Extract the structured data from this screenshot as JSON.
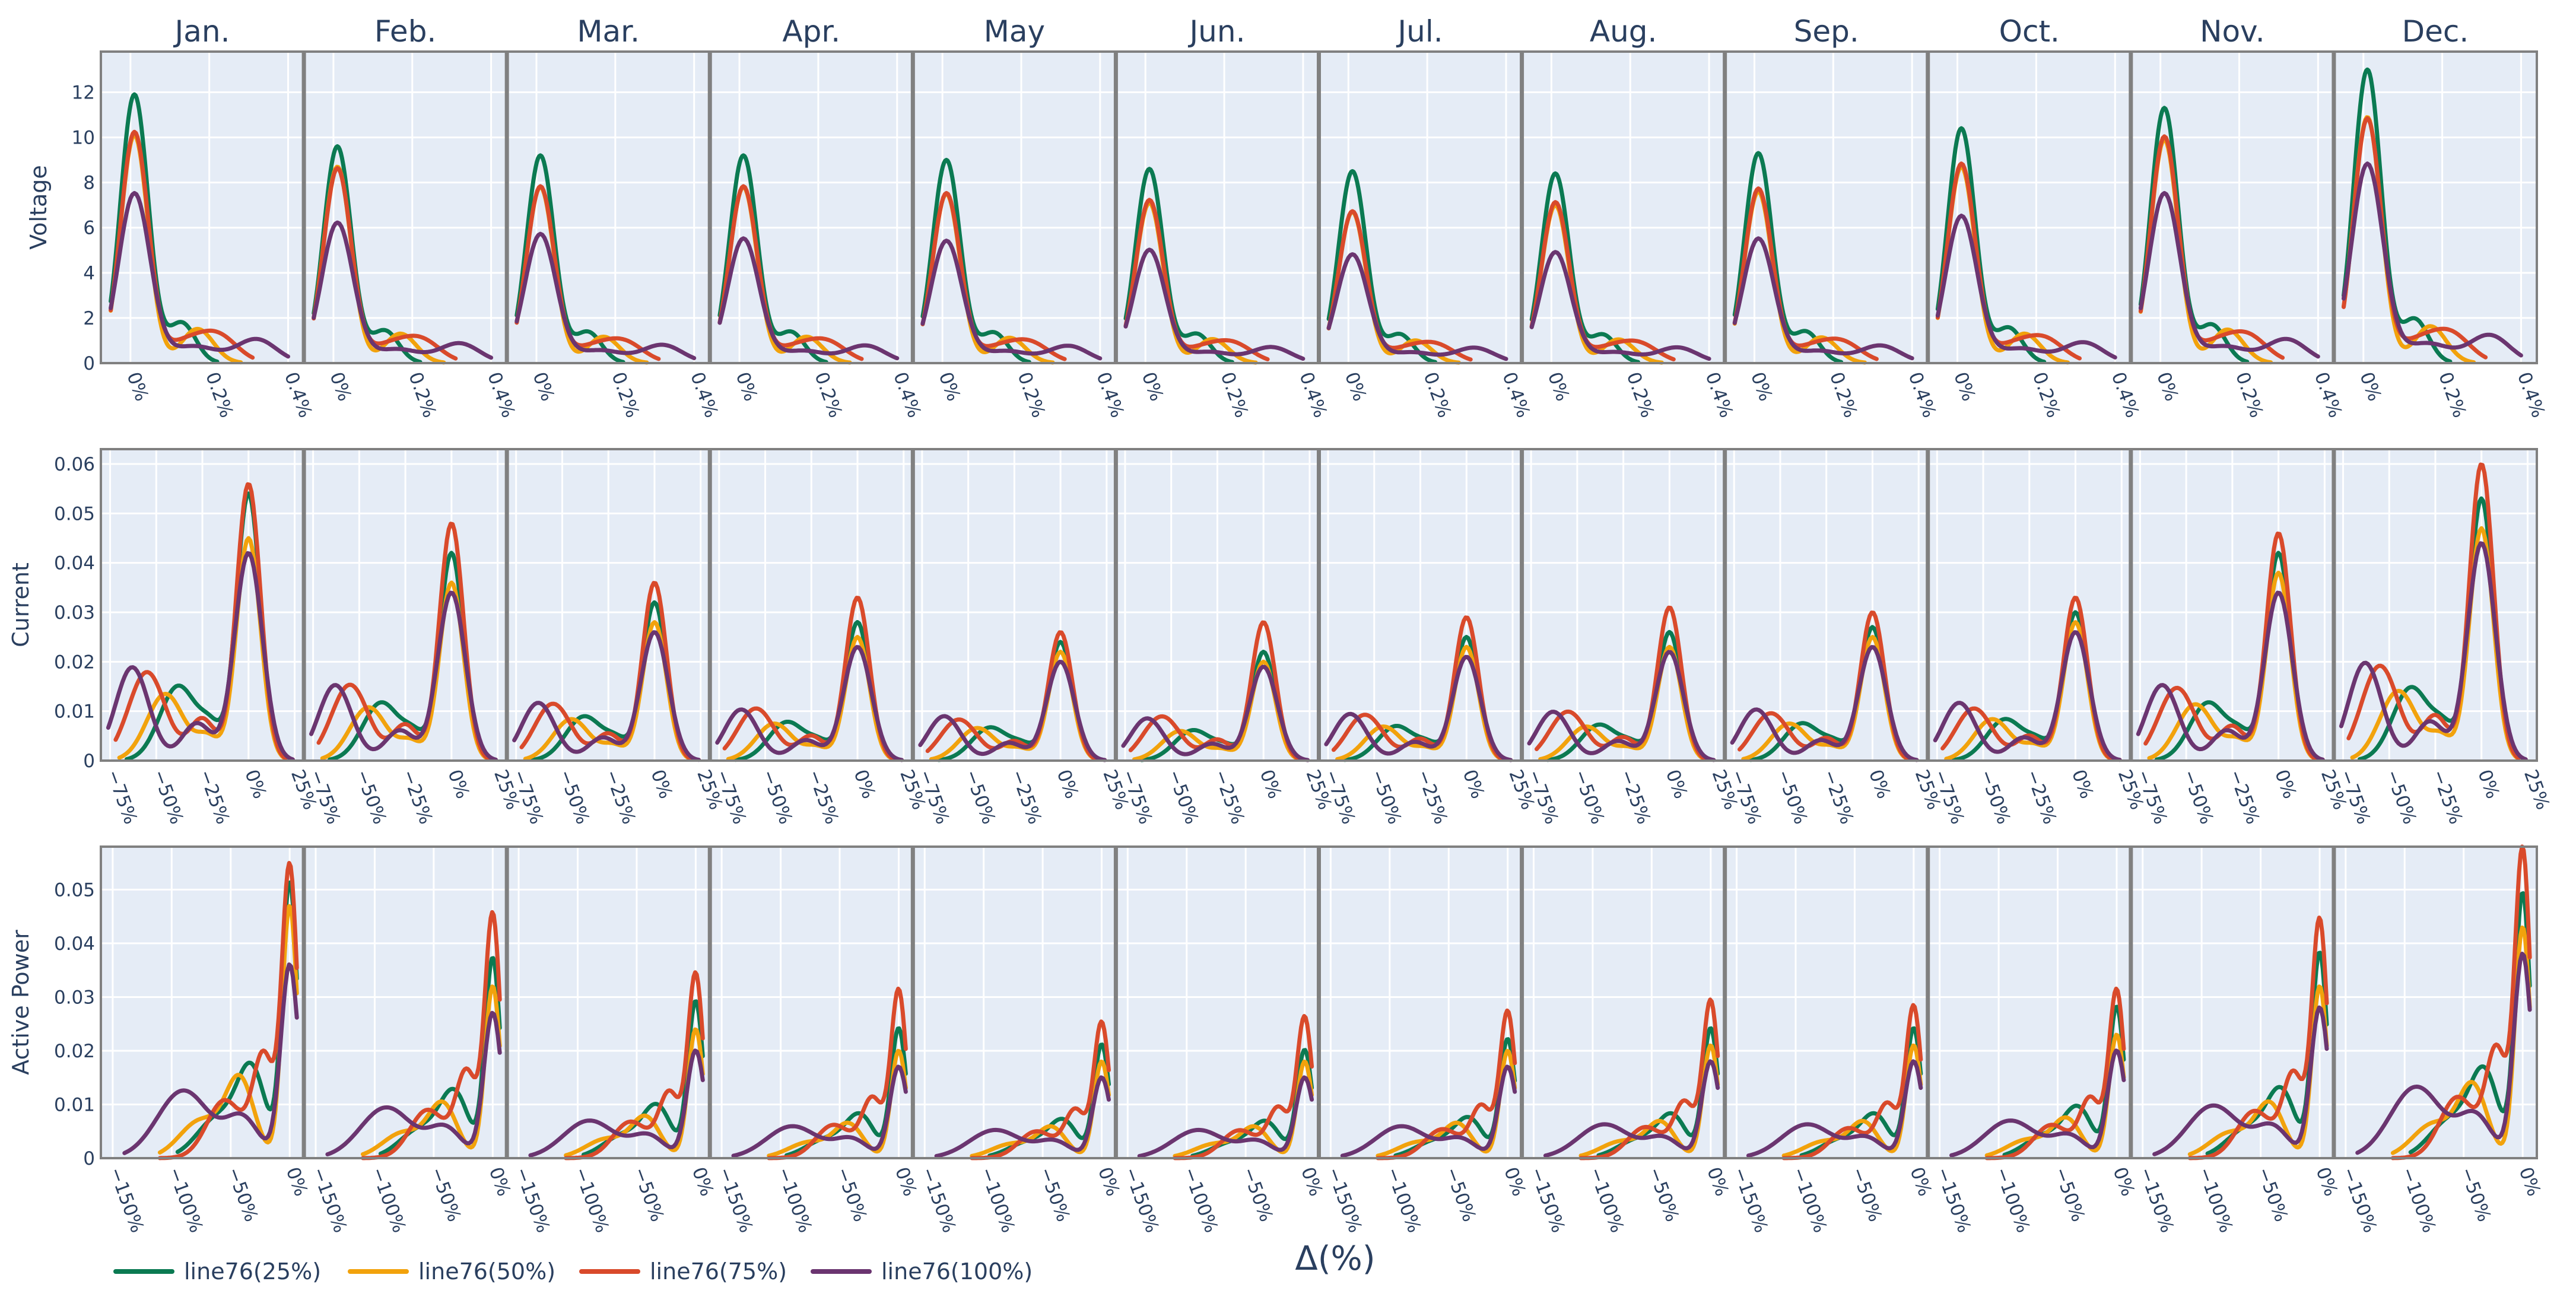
{
  "chart_data": {
    "type": "line",
    "kind": "kernel density estimate small multiples",
    "columns": [
      "Jan.",
      "Feb.",
      "Mar.",
      "Apr.",
      "May",
      "Jun.",
      "Jul.",
      "Aug.",
      "Sep.",
      "Oct.",
      "Nov.",
      "Dec."
    ],
    "xlabel": "Δ(%)",
    "legend": {
      "placement": "bottom-left",
      "entries": [
        {
          "name": "line76(25%)",
          "color": "#0b7a52"
        },
        {
          "name": "line76(50%)",
          "color": "#f2a20c"
        },
        {
          "name": "line76(75%)",
          "color": "#d94a2b"
        },
        {
          "name": "line76(100%)",
          "color": "#6b3570"
        }
      ]
    },
    "colors": {
      "plot_bg": "#e5ecf6",
      "grid": "#ffffff",
      "divider": "#808080",
      "text": "#2a3f5f"
    },
    "rows": [
      {
        "ylabel": "Voltage",
        "ylim": [
          0,
          13.8
        ],
        "yticks": [
          0,
          2,
          4,
          6,
          8,
          10,
          12
        ],
        "ytick_labels": [
          "0",
          "2",
          "4",
          "6",
          "8",
          "10",
          "12"
        ],
        "xlim": [
          -0.075,
          0.44
        ],
        "xticks": [
          0,
          0.2,
          0.4
        ],
        "xtick_labels": [
          "0%",
          "0.2%",
          "0.4%"
        ],
        "series_shape": [
          {
            "peaks": [
              [
                0.01,
                0.035,
                1.0
              ],
              [
                0.13,
                0.035,
                0.15
              ]
            ],
            "start": -0.05,
            "end": 0.22
          },
          {
            "peaks": [
              [
                0.01,
                0.035,
                1.0
              ],
              [
                0.17,
                0.04,
                0.15
              ]
            ],
            "start": -0.05,
            "end": 0.28
          },
          {
            "peaks": [
              [
                0.01,
                0.035,
                1.0
              ],
              [
                0.22,
                0.05,
                0.12
              ],
              [
                0.13,
                0.05,
                0.08
              ]
            ],
            "start": -0.05,
            "end": 0.31
          },
          {
            "peaks": [
              [
                0.01,
                0.04,
                1.0
              ],
              [
                0.32,
                0.05,
                0.14
              ],
              [
                0.16,
                0.06,
                0.1
              ]
            ],
            "start": -0.05,
            "end": 0.4
          }
        ],
        "peak_height": [
          [
            11.9,
            9.6,
            9.2,
            9.2,
            9.0,
            8.6,
            8.5,
            8.4,
            9.3,
            10.4,
            11.3,
            13.0
          ],
          [
            10.1,
            8.7,
            7.8,
            7.8,
            7.5,
            7.1,
            6.7,
            7.0,
            7.6,
            8.7,
            9.9,
            10.9
          ],
          [
            10.2,
            8.6,
            7.8,
            7.8,
            7.5,
            7.2,
            6.7,
            7.1,
            7.7,
            8.8,
            10.0,
            10.8
          ],
          [
            7.5,
            6.2,
            5.7,
            5.5,
            5.4,
            5.0,
            4.8,
            4.9,
            5.5,
            6.5,
            7.5,
            8.8
          ]
        ]
      },
      {
        "ylabel": "Current",
        "ylim": [
          0,
          0.063
        ],
        "yticks": [
          0,
          0.01,
          0.02,
          0.03,
          0.04,
          0.05,
          0.06
        ],
        "ytick_labels": [
          "0",
          "0.01",
          "0.02",
          "0.03",
          "0.04",
          "0.05",
          "0.06"
        ],
        "xlim": [
          -80,
          30
        ],
        "xticks": [
          -75,
          -50,
          -25,
          0,
          25
        ],
        "xtick_labels": [
          "−75%",
          "−50%",
          "−25%",
          "0%",
          "25%"
        ],
        "series_shape": [
          {
            "peaks": [
              [
                0,
                6.5,
                1.0
              ],
              [
                -38,
                10,
                0.28
              ],
              [
                -20,
                6,
                0.1
              ]
            ],
            "start": -66,
            "end": 20
          },
          {
            "peaks": [
              [
                0,
                6.5,
                1.0
              ],
              [
                -45,
                10,
                0.3
              ],
              [
                -22,
                6,
                0.1
              ]
            ],
            "start": -70,
            "end": 20
          },
          {
            "peaks": [
              [
                0,
                6.5,
                1.0
              ],
              [
                -55,
                10,
                0.32
              ],
              [
                -25,
                7,
                0.15
              ]
            ],
            "start": -72,
            "end": 20
          },
          {
            "peaks": [
              [
                0,
                7.5,
                1.0
              ],
              [
                -63,
                9,
                0.45
              ],
              [
                -28,
                8,
                0.18
              ]
            ],
            "start": -76,
            "end": 24
          }
        ],
        "peak_height": [
          [
            0.054,
            0.042,
            0.032,
            0.028,
            0.024,
            0.022,
            0.025,
            0.026,
            0.027,
            0.03,
            0.042,
            0.053
          ],
          [
            0.045,
            0.036,
            0.028,
            0.025,
            0.022,
            0.02,
            0.023,
            0.023,
            0.025,
            0.028,
            0.038,
            0.047
          ],
          [
            0.056,
            0.048,
            0.036,
            0.033,
            0.026,
            0.028,
            0.029,
            0.031,
            0.03,
            0.033,
            0.046,
            0.06
          ],
          [
            0.042,
            0.034,
            0.026,
            0.023,
            0.02,
            0.019,
            0.021,
            0.022,
            0.023,
            0.026,
            0.034,
            0.044
          ]
        ]
      },
      {
        "ylabel": "Active Power",
        "ylim": [
          0,
          0.058
        ],
        "yticks": [
          0,
          0.01,
          0.02,
          0.03,
          0.04,
          0.05
        ],
        "ytick_labels": [
          "0",
          "0.01",
          "0.02",
          "0.03",
          "0.04",
          "0.05"
        ],
        "xlim": [
          -160,
          12
        ],
        "xticks": [
          -150,
          -100,
          -50,
          0
        ],
        "xtick_labels": [
          "−150%",
          "−100%",
          "−50%",
          "0%"
        ],
        "series_shape": [
          {
            "peaks": [
              [
                0,
                6.5,
                1.0
              ],
              [
                -32,
                12,
                0.3
              ],
              [
                -60,
                18,
                0.15
              ]
            ],
            "start": -95,
            "end": 6
          },
          {
            "peaks": [
              [
                0,
                6.5,
                1.0
              ],
              [
                -42,
                12,
                0.3
              ],
              [
                -75,
                18,
                0.15
              ]
            ],
            "start": -110,
            "end": 6
          },
          {
            "peaks": [
              [
                0,
                6.5,
                1.0
              ],
              [
                -22,
                9,
                0.35
              ],
              [
                -55,
                15,
                0.2
              ]
            ],
            "start": -110,
            "end": 6
          },
          {
            "peaks": [
              [
                0,
                7.5,
                1.0
              ],
              [
                -90,
                22,
                0.35
              ],
              [
                -40,
                14,
                0.2
              ]
            ],
            "start": -140,
            "end": 6
          }
        ],
        "peak_height": [
          [
            0.051,
            0.037,
            0.029,
            0.024,
            0.021,
            0.02,
            0.022,
            0.024,
            0.024,
            0.028,
            0.038,
            0.049
          ],
          [
            0.047,
            0.032,
            0.024,
            0.02,
            0.018,
            0.018,
            0.02,
            0.021,
            0.021,
            0.023,
            0.032,
            0.043
          ],
          [
            0.054,
            0.045,
            0.034,
            0.031,
            0.025,
            0.026,
            0.027,
            0.029,
            0.028,
            0.031,
            0.044,
            0.057
          ],
          [
            0.036,
            0.027,
            0.02,
            0.017,
            0.015,
            0.015,
            0.017,
            0.018,
            0.018,
            0.02,
            0.028,
            0.038
          ]
        ]
      }
    ]
  }
}
